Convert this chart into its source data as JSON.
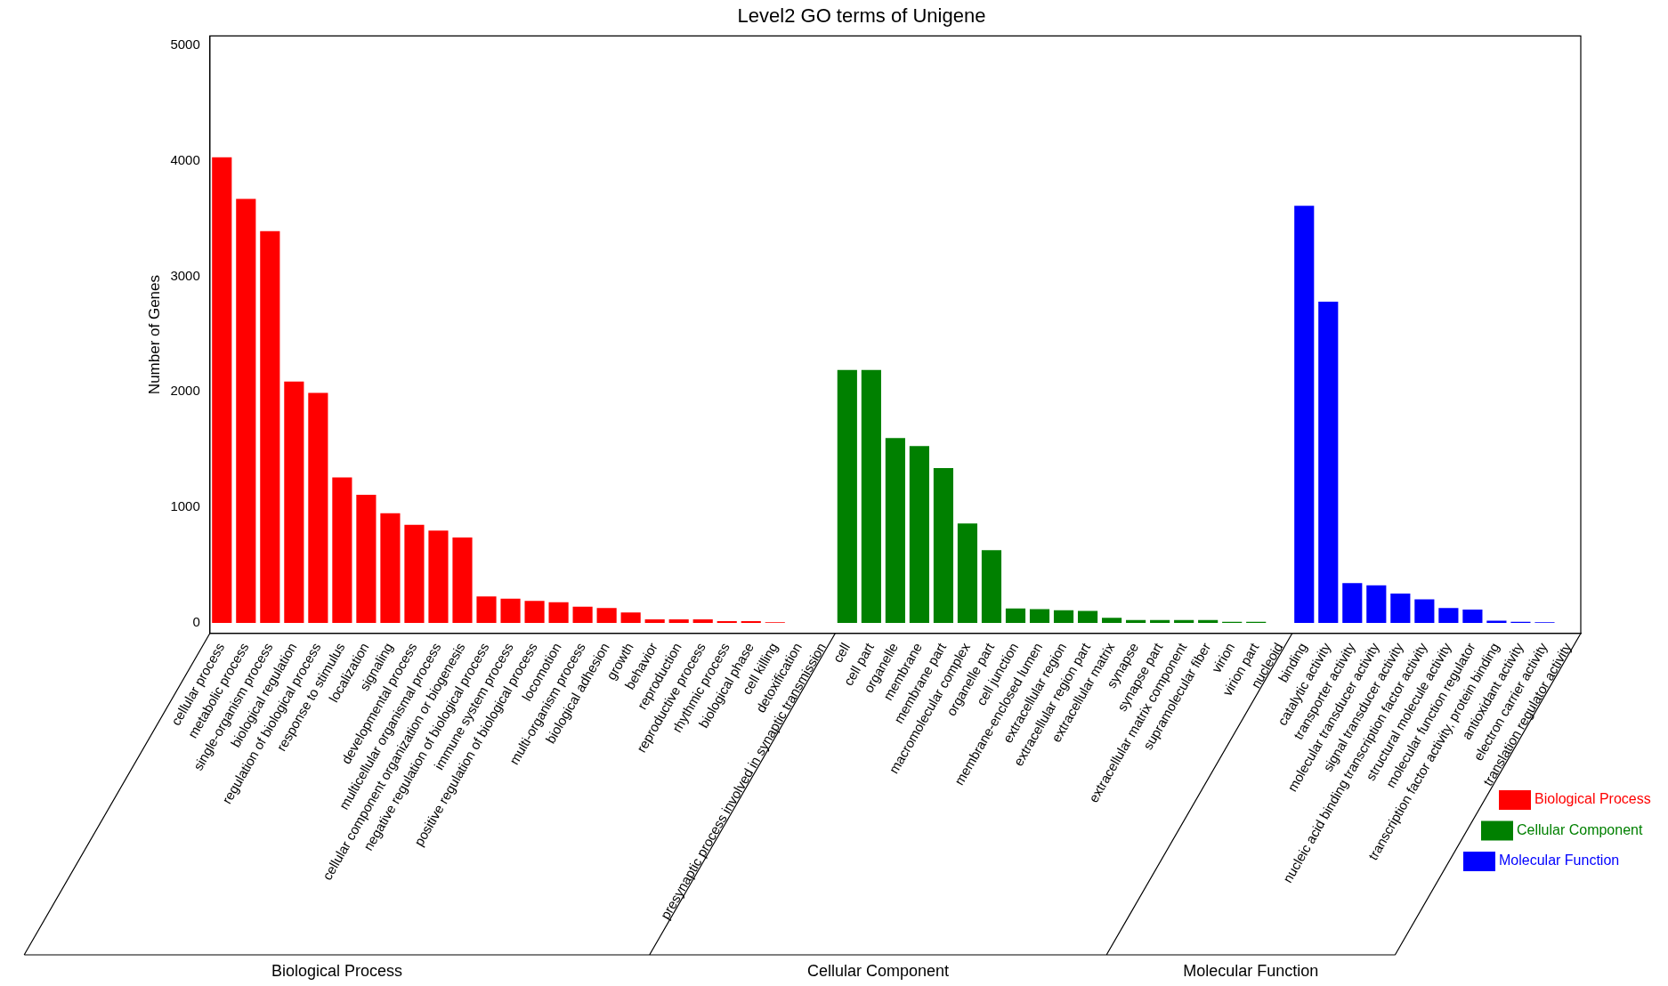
{
  "chart_data": {
    "type": "bar",
    "title": "Level2 GO terms of Unigene",
    "ylabel": "Number of Genes",
    "categories": [
      "cellular process",
      "metabolic process",
      "single-organism process",
      "biological regulation",
      "regulation of biological process",
      "response to stimulus",
      "localization",
      "signaling",
      "developmental process",
      "multicellular organismal process",
      "cellular component organization or biogenesis",
      "negative regulation of biological process",
      "immune system process",
      "positive regulation of biological process",
      "locomotion",
      "multi-organism process",
      "biological adhesion",
      "growth",
      "behavior",
      "reproduction",
      "reproductive process",
      "rhythmic process",
      "biological phase",
      "cell killing",
      "detoxification",
      "presynaptic process involved in synaptic transmission",
      "cell",
      "cell part",
      "organelle",
      "membrane",
      "membrane part",
      "macromolecular complex",
      "organelle part",
      "cell junction",
      "membrane-enclosed lumen",
      "extracellular region",
      "extracellular region part",
      "extracellular matrix",
      "synapse",
      "synapse part",
      "extracellular matrix component",
      "supramolecular fiber",
      "virion",
      "virion part",
      "nucleoid",
      "binding",
      "catalytic activity",
      "transporter activity",
      "molecular transducer activity",
      "signal transducer activity",
      "nucleic acid binding transcription factor activity",
      "structural molecule activity",
      "molecular function regulator",
      "transcription factor activity, protein binding",
      "antioxidant activity",
      "electron carrier activity",
      "translation regulator activity"
    ],
    "series": [
      {
        "name": "Biological Process",
        "color": "#ff0000",
        "values": [
          4030,
          3670,
          3390,
          2090,
          1990,
          1260,
          1110,
          950,
          850,
          800,
          740,
          230,
          210,
          190,
          180,
          140,
          130,
          90,
          30,
          30,
          30,
          15,
          15,
          5,
          0,
          0,
          null,
          null,
          null,
          null,
          null,
          null,
          null,
          null,
          null,
          null,
          null,
          null,
          null,
          null,
          null,
          null,
          null,
          null,
          null,
          null,
          null,
          null,
          null,
          null,
          null,
          null,
          null,
          null,
          null,
          null,
          null
        ]
      },
      {
        "name": "Cellular Component",
        "color": "#008000",
        "values": [
          null,
          null,
          null,
          null,
          null,
          null,
          null,
          null,
          null,
          null,
          null,
          null,
          null,
          null,
          null,
          null,
          null,
          null,
          null,
          null,
          null,
          null,
          null,
          null,
          null,
          null,
          2190,
          2190,
          1600,
          1530,
          1340,
          860,
          630,
          125,
          120,
          110,
          105,
          45,
          25,
          25,
          25,
          25,
          10,
          10,
          0,
          null,
          null,
          null,
          null,
          null,
          null,
          null,
          null,
          null,
          null,
          null,
          null
        ]
      },
      {
        "name": "Molecular Function",
        "color": "#0000ff",
        "values": [
          null,
          null,
          null,
          null,
          null,
          null,
          null,
          null,
          null,
          null,
          null,
          null,
          null,
          null,
          null,
          null,
          null,
          null,
          null,
          null,
          null,
          null,
          null,
          null,
          null,
          null,
          null,
          null,
          null,
          null,
          null,
          null,
          null,
          null,
          null,
          null,
          null,
          null,
          null,
          null,
          null,
          null,
          null,
          null,
          null,
          3610,
          2780,
          345,
          325,
          255,
          205,
          130,
          115,
          20,
          10,
          5,
          null
        ]
      }
    ],
    "ylim": [
      -90,
      5080
    ],
    "yticks": [
      0,
      1000,
      2000,
      3000,
      4000,
      5000
    ],
    "legend": "bottom right"
  }
}
